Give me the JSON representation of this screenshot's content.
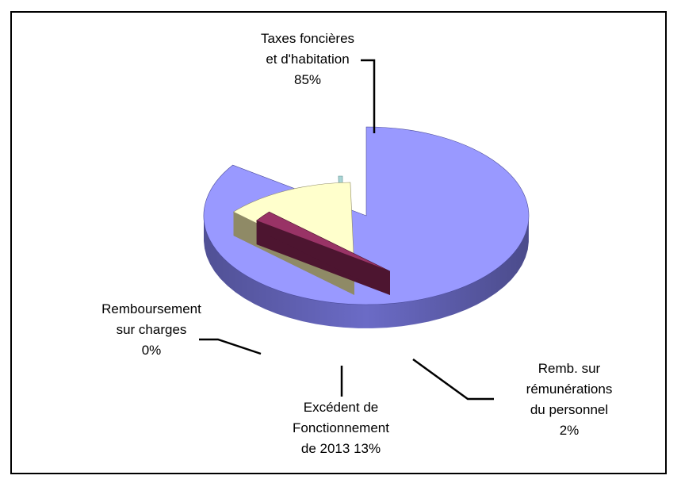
{
  "chart_data": {
    "type": "pie",
    "title": "",
    "slices": [
      {
        "label_lines": [
          "Taxes foncières",
          "et d'habitation",
          "85%"
        ],
        "value": 85,
        "color": "#9999ff",
        "side": "#6b6bc6",
        "dark": "#4a4a99"
      },
      {
        "label_lines": [
          "Remb. sur",
          "rémunérations",
          "du personnel",
          "2%"
        ],
        "value": 2,
        "color": "#993366",
        "side": "#6b1f43",
        "dark": "#4d1530"
      },
      {
        "label_lines": [
          "Excédent de",
          "Fonctionnement",
          "de 2013 13%"
        ],
        "value": 13,
        "color": "#ffffcc",
        "side": "#b5b08a",
        "dark": "#8f8a66"
      },
      {
        "label_lines": [
          "Remboursement",
          "sur charges",
          "0%"
        ],
        "value": 0.4,
        "color": "#a9d6d6",
        "side": "#79a8a8",
        "dark": "#5f8d8d"
      }
    ],
    "legend": "none"
  }
}
